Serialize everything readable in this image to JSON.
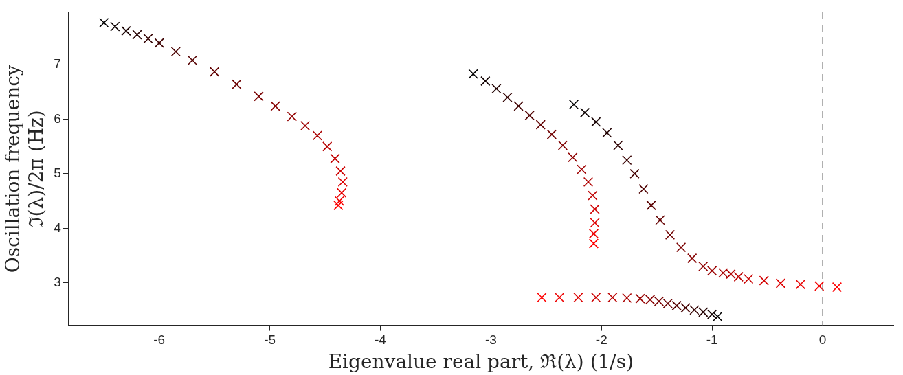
{
  "chart_data": {
    "type": "scatter",
    "xlabel": "Eigenvalue real part, ℜ(λ) (1/s)",
    "ylabel": "Oscillation frequency\nℑ(λ)/2π (Hz)",
    "xlim": [
      -6.82,
      0.64
    ],
    "xticks": [
      -6,
      -5,
      -4,
      -3,
      -2,
      -1,
      0
    ],
    "ylim": [
      2.22,
      7.96
    ],
    "yticks": [
      3,
      4,
      5,
      6,
      7
    ],
    "grid": false,
    "legend": false,
    "marker": "cross",
    "ref_lines": [
      {
        "axis": "x",
        "value": 0,
        "color": "#808080",
        "line_style": "dashed"
      }
    ],
    "series": [
      {
        "x": [
          -6.5,
          -6.4,
          -6.3,
          -6.2,
          -6.1,
          -6.0,
          -5.85,
          -5.7,
          -5.5,
          -5.3,
          -5.1,
          -4.95,
          -4.8,
          -4.68,
          -4.57,
          -4.48,
          -4.41,
          -4.36,
          -4.34,
          -4.35,
          -4.37,
          -4.38
        ],
        "values": [
          7.77,
          7.7,
          7.62,
          7.55,
          7.48,
          7.4,
          7.24,
          7.08,
          6.87,
          6.64,
          6.42,
          6.24,
          6.05,
          5.88,
          5.7,
          5.5,
          5.28,
          5.05,
          4.85,
          4.65,
          4.5,
          4.42
        ],
        "colors": [
          "#000000",
          "#0c0000",
          "#180000",
          "#240000",
          "#310000",
          "#3d0000",
          "#490000",
          "#550000",
          "#610000",
          "#6d0000",
          "#790000",
          "#860000",
          "#920000",
          "#9e0000",
          "#aa0000",
          "#b60000",
          "#c20000",
          "#ce0000",
          "#db0000",
          "#e70000",
          "#f30000",
          "#ff0000"
        ]
      },
      {
        "x": [
          -3.16,
          -3.05,
          -2.95,
          -2.85,
          -2.75,
          -2.65,
          -2.55,
          -2.45,
          -2.35,
          -2.26,
          -2.18,
          -2.12,
          -2.08,
          -2.06,
          -2.06,
          -2.07,
          -2.07
        ],
        "values": [
          6.83,
          6.7,
          6.56,
          6.4,
          6.24,
          6.07,
          5.9,
          5.72,
          5.52,
          5.3,
          5.08,
          4.85,
          4.6,
          4.35,
          4.1,
          3.9,
          3.72
        ],
        "colors": [
          "#000000",
          "#100000",
          "#200000",
          "#300000",
          "#400000",
          "#500000",
          "#600000",
          "#700000",
          "#800000",
          "#8f0000",
          "#9f0000",
          "#af0000",
          "#bf0000",
          "#cf0000",
          "#df0000",
          "#ef0000",
          "#ff0000"
        ]
      },
      {
        "x": [
          -2.25,
          -2.15,
          -2.05,
          -1.95,
          -1.85,
          -1.77,
          -1.7,
          -1.62,
          -1.55,
          -1.47,
          -1.38,
          -1.28,
          -1.18,
          -1.08,
          -1.0,
          -0.9,
          -0.83,
          -0.76,
          -0.67,
          -0.53,
          -0.38,
          -0.2,
          -0.03,
          0.13
        ],
        "values": [
          6.27,
          6.12,
          5.95,
          5.75,
          5.52,
          5.25,
          5.0,
          4.72,
          4.42,
          4.15,
          3.88,
          3.65,
          3.45,
          3.3,
          3.22,
          3.18,
          3.16,
          3.11,
          3.07,
          3.04,
          2.99,
          2.97,
          2.94,
          2.92
        ],
        "colors": [
          "#000000",
          "#0b0000",
          "#160000",
          "#210000",
          "#2c0000",
          "#370000",
          "#430000",
          "#4e0000",
          "#590000",
          "#640000",
          "#6f0000",
          "#7a0000",
          "#850000",
          "#900000",
          "#9b0000",
          "#a60000",
          "#b10000",
          "#bc0000",
          "#c80000",
          "#d30000",
          "#de0000",
          "#e90000",
          "#f40000",
          "#ff0000"
        ]
      },
      {
        "x": [
          -0.95,
          -1.0,
          -1.08,
          -1.16,
          -1.24,
          -1.32,
          -1.4,
          -1.48,
          -1.56,
          -1.65,
          -1.77,
          -1.9,
          -2.05,
          -2.21,
          -2.38,
          -2.54
        ],
        "values": [
          2.38,
          2.42,
          2.46,
          2.5,
          2.54,
          2.58,
          2.62,
          2.66,
          2.69,
          2.71,
          2.72,
          2.73,
          2.73,
          2.73,
          2.73,
          2.73
        ],
        "colors": [
          "#000000",
          "#110000",
          "#220000",
          "#330000",
          "#440000",
          "#550000",
          "#660000",
          "#770000",
          "#880000",
          "#990000",
          "#aa0000",
          "#bb0000",
          "#cc0000",
          "#dd0000",
          "#ee0000",
          "#ff0000"
        ]
      }
    ]
  }
}
